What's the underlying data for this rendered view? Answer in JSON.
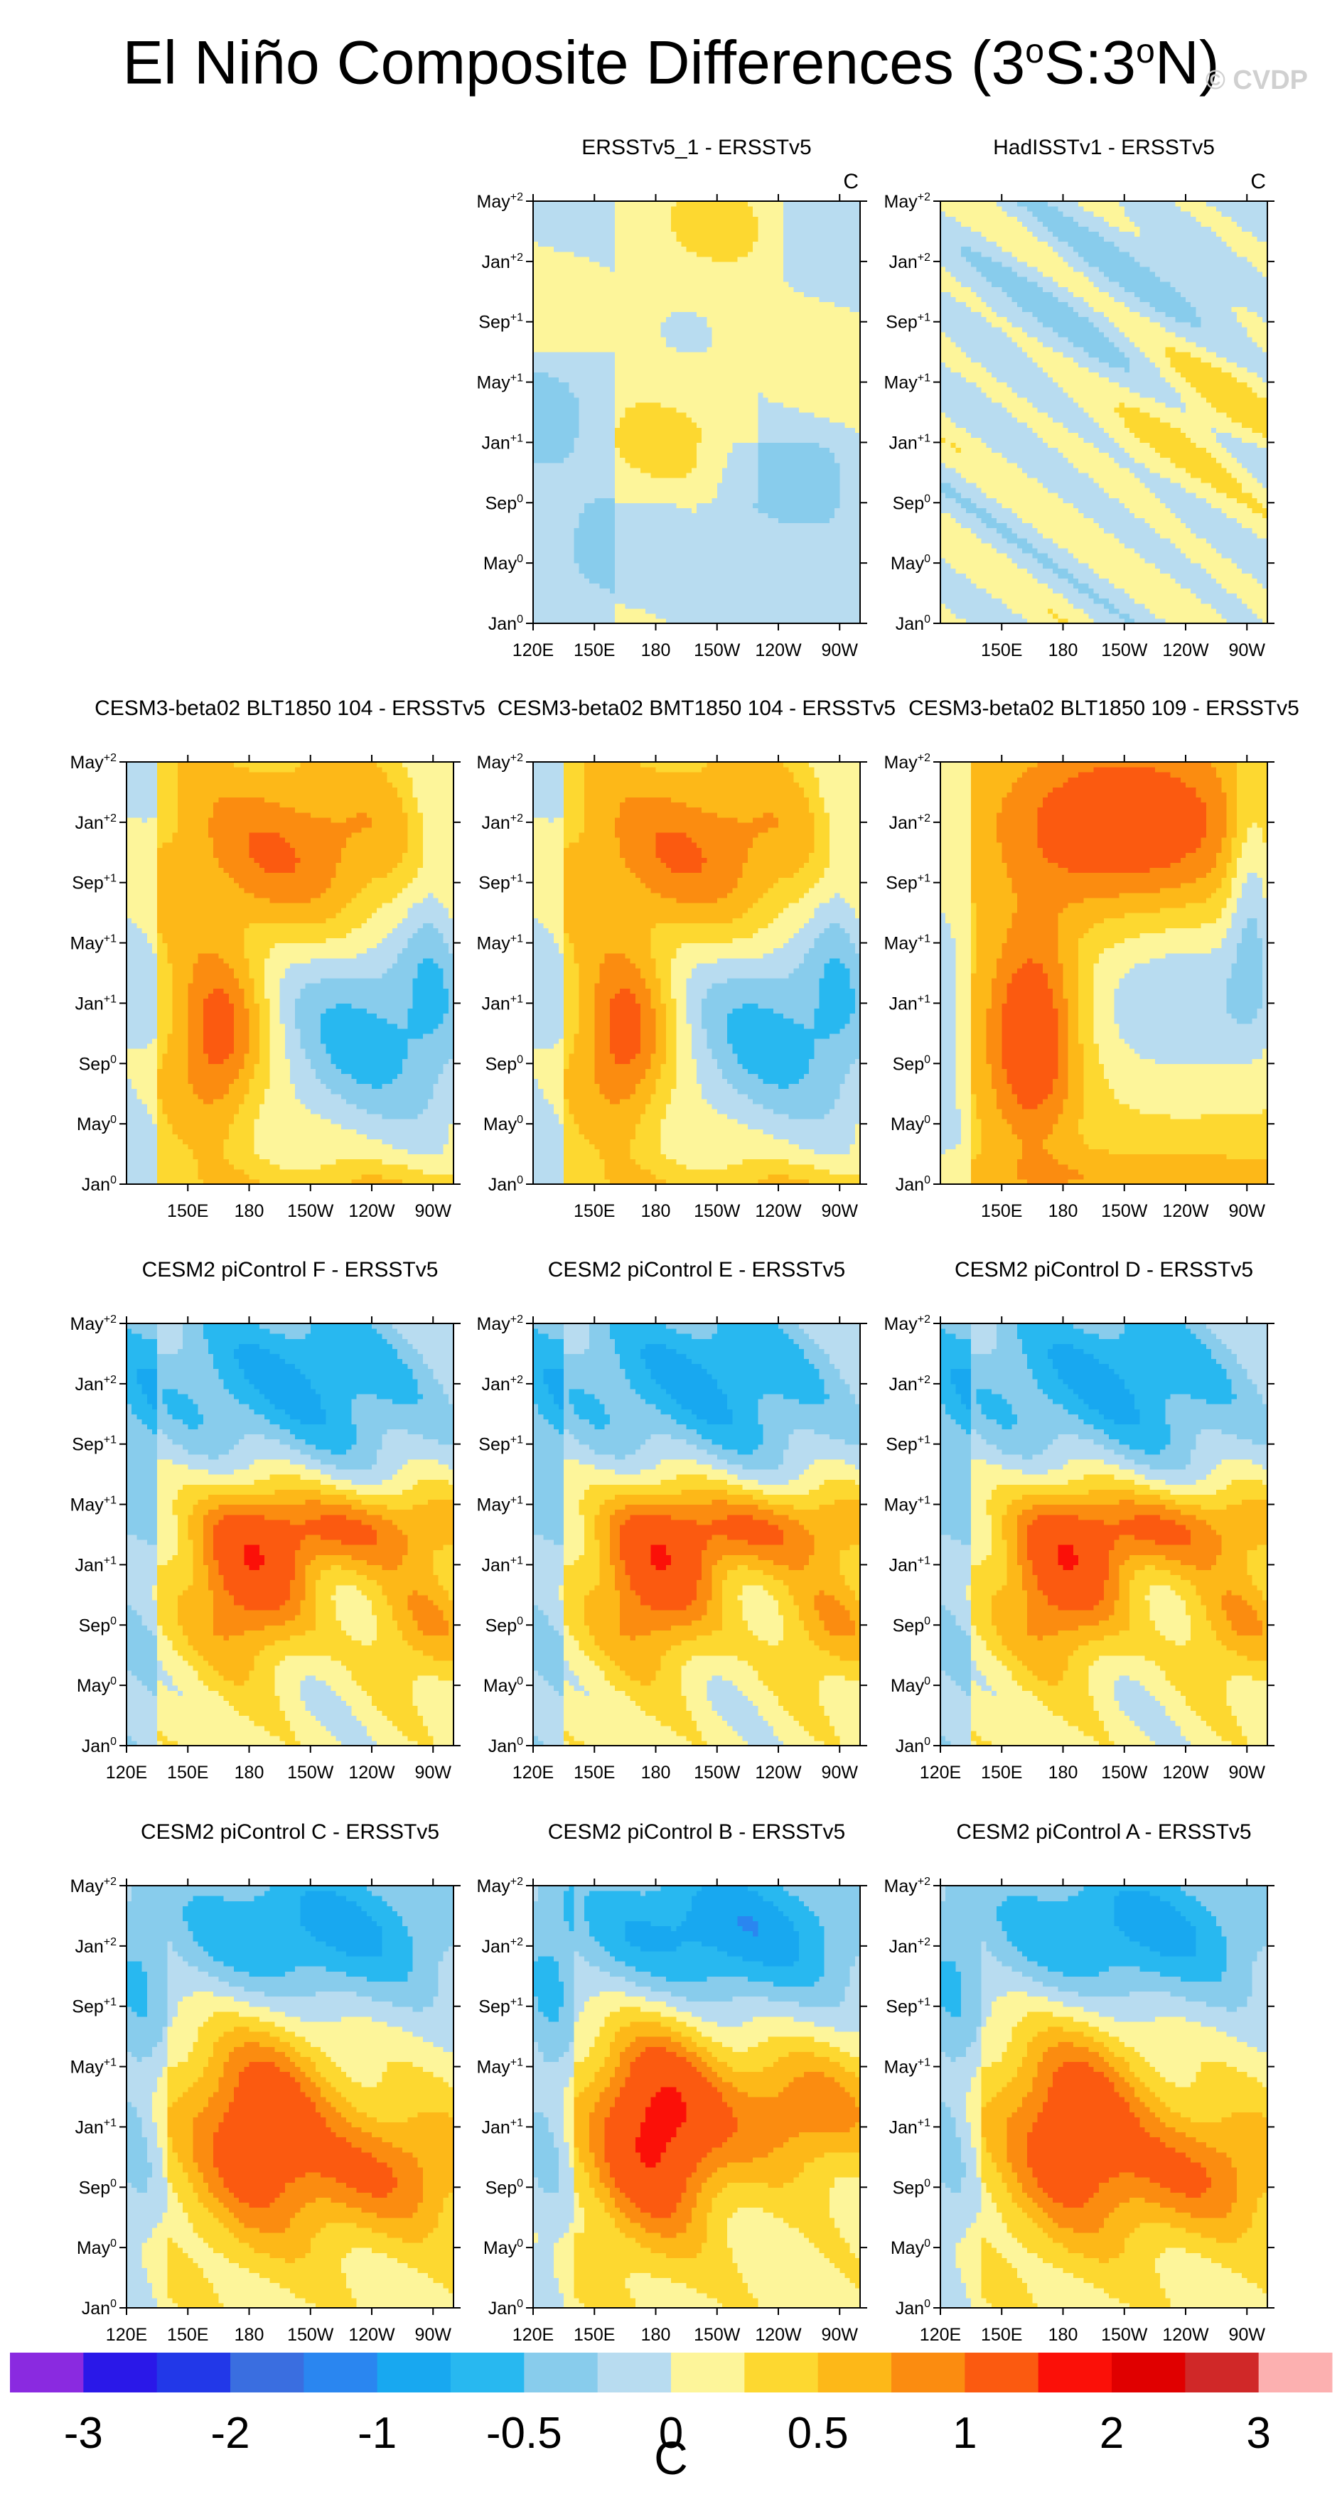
{
  "title": {
    "main": "El Niño Composite Differences (3",
    "sup1": "o",
    "mid": "S:3",
    "sup2": "o",
    "end": "N)"
  },
  "watermark": "© CVDP",
  "chart_data": {
    "type": "heatmap",
    "description_units": "C",
    "y_ticks": [
      {
        "label": "Jan",
        "sup": "0",
        "month": 0
      },
      {
        "label": "May",
        "sup": "0",
        "month": 4
      },
      {
        "label": "Sep",
        "sup": "0",
        "month": 8
      },
      {
        "label": "Jan",
        "sup": "+1",
        "month": 12
      },
      {
        "label": "May",
        "sup": "+1",
        "month": 16
      },
      {
        "label": "Sep",
        "sup": "+1",
        "month": 20
      },
      {
        "label": "Jan",
        "sup": "+2",
        "month": 24
      },
      {
        "label": "May",
        "sup": "+2",
        "month": 28
      }
    ],
    "y_range_months": [
      0,
      28
    ],
    "x_range_lon": [
      120,
      280
    ],
    "x_ticks_full": [
      {
        "label": "120E",
        "lon": 120
      },
      {
        "label": "150E",
        "lon": 150
      },
      {
        "label": "180",
        "lon": 180
      },
      {
        "label": "150W",
        "lon": 210
      },
      {
        "label": "120W",
        "lon": 240
      },
      {
        "label": "90W",
        "lon": 270
      }
    ],
    "x_ticks_partial": [
      {
        "label": "150E",
        "lon": 150
      },
      {
        "label": "180",
        "lon": 180
      },
      {
        "label": "150W",
        "lon": 210
      },
      {
        "label": "120W",
        "lon": 240
      },
      {
        "label": "90W",
        "lon": 270
      }
    ],
    "colorbar": {
      "levels": [
        -3,
        -2.5,
        -2,
        -1.5,
        -1,
        -0.75,
        -0.5,
        -0.25,
        0,
        0.25,
        0.5,
        0.75,
        1,
        1.5,
        2,
        2.5,
        3
      ],
      "colors": [
        "#8a2ae0",
        "#2a18e8",
        "#2238e8",
        "#3a6ee0",
        "#2a86f0",
        "#18a8f0",
        "#28b8f0",
        "#88ccec",
        "#b8dcf0",
        "#fdf59a",
        "#fdd830",
        "#fdb818",
        "#fb8c10",
        "#fb5a10",
        "#fb1008",
        "#e00000",
        "#d02828",
        "#fcb0b0"
      ],
      "labels": [
        {
          "text": "-3",
          "value": -3
        },
        {
          "text": "-2",
          "value": -2
        },
        {
          "text": "-1",
          "value": -1
        },
        {
          "text": "-0.5",
          "value": -0.5
        },
        {
          "text": "0",
          "value": 0
        },
        {
          "text": "0.5",
          "value": 0.5
        },
        {
          "text": "1",
          "value": 1
        },
        {
          "text": "2",
          "value": 2
        },
        {
          "text": "3",
          "value": 3
        }
      ],
      "units": "C"
    },
    "panels": [
      {
        "id": "r1c2",
        "title": "ERSSTv5_1 - ERSSTv5",
        "corner_label": "C",
        "row": 0,
        "col": 1,
        "xticks": "full",
        "pattern": "obs1"
      },
      {
        "id": "r1c3",
        "title": "HadISSTv1 - ERSSTv5",
        "corner_label": "C",
        "row": 0,
        "col": 2,
        "xticks": "partial",
        "pattern": "obs2"
      },
      {
        "id": "r2c1",
        "title": "CESM3-beta02 BLT1850 104 - ERSSTv5",
        "corner_label": "",
        "row": 1,
        "col": 0,
        "xticks": "partial",
        "pattern": "beta"
      },
      {
        "id": "r2c2",
        "title": "CESM3-beta02 BMT1850 104 - ERSSTv5",
        "corner_label": "",
        "row": 1,
        "col": 1,
        "xticks": "partial",
        "pattern": "beta"
      },
      {
        "id": "r2c3",
        "title": "CESM3-beta02 BLT1850 109 - ERSSTv5",
        "corner_label": "",
        "row": 1,
        "col": 2,
        "xticks": "partial",
        "pattern": "beta2"
      },
      {
        "id": "r3c1",
        "title": "CESM2 piControl F - ERSSTv5",
        "corner_label": "",
        "row": 2,
        "col": 0,
        "xticks": "full",
        "pattern": "cesm2"
      },
      {
        "id": "r3c2",
        "title": "CESM2 piControl E - ERSSTv5",
        "corner_label": "",
        "row": 2,
        "col": 1,
        "xticks": "full",
        "pattern": "cesm2"
      },
      {
        "id": "r3c3",
        "title": "CESM2 piControl D - ERSSTv5",
        "corner_label": "",
        "row": 2,
        "col": 2,
        "xticks": "full",
        "pattern": "cesm2"
      },
      {
        "id": "r4c1",
        "title": "CESM2 piControl C - ERSSTv5",
        "corner_label": "",
        "row": 3,
        "col": 0,
        "xticks": "full",
        "pattern": "cesm2b"
      },
      {
        "id": "r4c2",
        "title": "CESM2 piControl B - ERSSTv5",
        "corner_label": "",
        "row": 3,
        "col": 1,
        "xticks": "full",
        "pattern": "cesm2c"
      },
      {
        "id": "r4c3",
        "title": "CESM2 piControl A - ERSSTv5",
        "corner_label": "",
        "row": 3,
        "col": 2,
        "xticks": "full",
        "pattern": "cesm2b"
      }
    ]
  }
}
